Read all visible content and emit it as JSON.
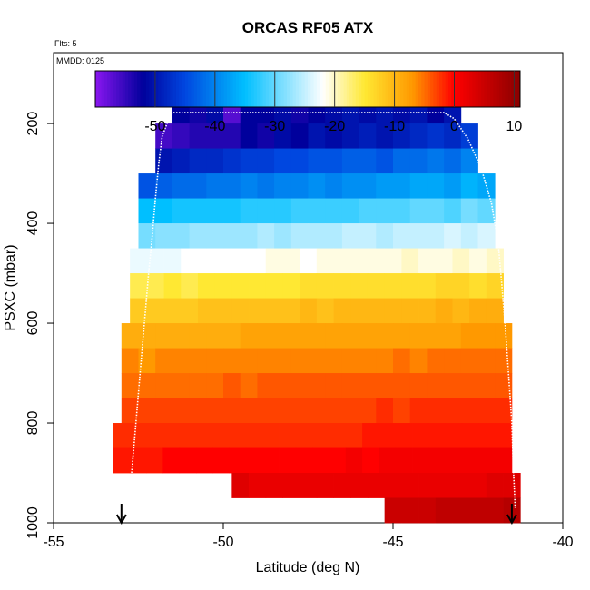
{
  "chart_data": {
    "type": "heatmap",
    "title": "ORCAS RF05 ATX",
    "subtitle_flts": "Flts: 5",
    "subtitle_mmdd": "MMDD: 0125",
    "xlabel": "Latitude (deg N)",
    "ylabel": "PSXC (mbar)",
    "xlim": [
      -55,
      -40
    ],
    "ylim": [
      1000,
      100
    ],
    "x_ticks": [
      -55,
      -50,
      -45,
      -40
    ],
    "y_ticks": [
      200,
      400,
      600,
      800,
      1000
    ],
    "colorbar": {
      "range": [
        -60,
        11
      ],
      "ticks": [
        -50,
        -40,
        -30,
        -20,
        -10,
        0,
        10
      ],
      "colors": [
        "#8a16f0",
        "#00009c",
        "#0047e0",
        "#00bfff",
        "#ffffff",
        "#ffe833",
        "#ff9900",
        "#ff0000",
        "#8a0000"
      ]
    },
    "bin_width_lat": 0.5,
    "bin_height_mbar": 50,
    "rows": [
      {
        "p": 175,
        "lat0": -51.5,
        "lat1": -43.0,
        "values": [
          -52,
          -53,
          -51,
          -57,
          -52,
          -52,
          -51,
          -53,
          -52,
          -51,
          -50,
          -51,
          -50,
          -51,
          -50,
          -52,
          -50
        ]
      },
      {
        "p": 225,
        "lat0": -52.0,
        "lat1": -42.5,
        "values": [
          -56,
          -55,
          -54,
          -54,
          -54,
          -52,
          -53,
          -51,
          -52,
          -50,
          -51,
          -50,
          -49,
          -50,
          -49,
          -48,
          -47,
          -48,
          -46
        ]
      },
      {
        "p": 275,
        "lat0": -52.0,
        "lat1": -42.5,
        "values": [
          -50,
          -49,
          -48,
          -48,
          -47,
          -46,
          -46,
          -45,
          -45,
          -44,
          -44,
          -43,
          -43,
          -44,
          -42,
          -42,
          -41,
          -42,
          -40
        ]
      },
      {
        "p": 325,
        "lat0": -52.5,
        "lat1": -42.0,
        "values": [
          -44,
          -43,
          -42,
          -42,
          -41,
          -41,
          -40,
          -41,
          -40,
          -40,
          -39,
          -40,
          -39,
          -39,
          -38,
          -38,
          -37,
          -37,
          -38,
          -36,
          -37
        ]
      },
      {
        "p": 375,
        "lat0": -52.5,
        "lat1": -42.0,
        "values": [
          -35,
          -35,
          -34,
          -34,
          -34,
          -34,
          -33,
          -33,
          -33,
          -32,
          -32,
          -32,
          -32,
          -31,
          -31,
          -31,
          -30,
          -30,
          -31,
          -29,
          -30
        ]
      },
      {
        "p": 425,
        "lat0": -52.5,
        "lat1": -42.0,
        "values": [
          -29,
          -28,
          -28,
          -27,
          -27,
          -27,
          -27,
          -26,
          -27,
          -26,
          -26,
          -26,
          -25,
          -25,
          -26,
          -25,
          -25,
          -25,
          -24,
          -25,
          -24
        ]
      },
      {
        "p": 475,
        "lat0": -52.75,
        "lat1": -41.75,
        "values": [
          -23,
          -23,
          -23,
          -22,
          -22,
          -22,
          -22,
          -22,
          -21,
          -21,
          -22,
          -21,
          -21,
          -21,
          -21,
          -21,
          -20,
          -21,
          -21,
          -20,
          -21,
          -20
        ]
      },
      {
        "p": 525,
        "lat0": -52.75,
        "lat1": -41.75,
        "values": [
          -16,
          -16,
          -15,
          -16,
          -15,
          -15,
          -15,
          -15,
          -15,
          -15,
          -14,
          -14,
          -14,
          -14,
          -14,
          -14,
          -14,
          -14,
          -13,
          -13,
          -14,
          -13
        ]
      },
      {
        "p": 575,
        "lat0": -52.75,
        "lat1": -41.75,
        "values": [
          -12,
          -12,
          -12,
          -12,
          -11,
          -11,
          -11,
          -11,
          -11,
          -11,
          -10,
          -11,
          -10,
          -10,
          -10,
          -10,
          -10,
          -10,
          -9,
          -10,
          -9,
          -9
        ]
      },
      {
        "p": 625,
        "lat0": -53.0,
        "lat1": -41.5,
        "values": [
          -9,
          -9,
          -9,
          -9,
          -9,
          -9,
          -9,
          -8,
          -8,
          -8,
          -8,
          -8,
          -8,
          -8,
          -8,
          -8,
          -8,
          -8,
          -8,
          -8,
          -7,
          -7,
          -7
        ]
      },
      {
        "p": 675,
        "lat0": -53.0,
        "lat1": -41.5,
        "values": [
          -6,
          -7,
          -6,
          -6,
          -6,
          -6,
          -6,
          -6,
          -6,
          -6,
          -6,
          -6,
          -6,
          -6,
          -6,
          -6,
          -5,
          -6,
          -5,
          -5,
          -5,
          -5,
          -5
        ]
      },
      {
        "p": 725,
        "lat0": -53.0,
        "lat1": -41.5,
        "values": [
          -5,
          -5,
          -5,
          -5,
          -5,
          -5,
          -4,
          -5,
          -4,
          -4,
          -4,
          -4,
          -4,
          -4,
          -4,
          -4,
          -4,
          -4,
          -4,
          -4,
          -4,
          -4,
          -4
        ]
      },
      {
        "p": 775,
        "lat0": -53.0,
        "lat1": -41.5,
        "values": [
          -3,
          -3,
          -3,
          -3,
          -3,
          -3,
          -3,
          -3,
          -3,
          -3,
          -3,
          -3,
          -3,
          -3,
          -3,
          -2,
          -3,
          -2,
          -2,
          -2,
          -2,
          -2,
          -2
        ]
      },
      {
        "p": 825,
        "lat0": -53.25,
        "lat1": -41.5,
        "values": [
          -2,
          -2,
          -2,
          -2,
          -2,
          -2,
          -2,
          -2,
          -2,
          -2,
          -2,
          -2,
          -2,
          -2,
          -2,
          -1,
          -1,
          -1,
          -1,
          -1,
          -1,
          -1,
          -1,
          -1
        ]
      },
      {
        "p": 875,
        "lat0": -53.25,
        "lat1": -41.5,
        "values": [
          -1,
          -1,
          -1,
          0,
          0,
          0,
          0,
          0,
          0,
          0,
          0,
          0,
          0,
          0,
          1,
          0,
          1,
          1,
          1,
          1,
          1,
          1,
          1,
          1
        ]
      },
      {
        "p": 925,
        "lat0": -49.75,
        "lat1": -41.25,
        "values": [
          3,
          2,
          2,
          2,
          2,
          2,
          2,
          2,
          2,
          2,
          2,
          2,
          2,
          2,
          2,
          3,
          3
        ]
      },
      {
        "p": 975,
        "lat0": -45.25,
        "lat1": -41.25,
        "values": [
          5,
          5,
          5,
          6,
          6,
          6,
          6,
          7
        ]
      }
    ],
    "flight_track": [
      [
        -52.8,
        965
      ],
      [
        -52.7,
        900
      ],
      [
        -52.6,
        820
      ],
      [
        -52.5,
        740
      ],
      [
        -52.4,
        660
      ],
      [
        -52.3,
        580
      ],
      [
        -52.2,
        500
      ],
      [
        -52.1,
        430
      ],
      [
        -52.0,
        350
      ],
      [
        -51.9,
        280
      ],
      [
        -51.8,
        225
      ],
      [
        -51.6,
        190
      ],
      [
        -51.5,
        178
      ],
      [
        -50.0,
        178
      ],
      [
        -48.0,
        178
      ],
      [
        -45.0,
        178
      ],
      [
        -43.5,
        178
      ],
      [
        -43.2,
        190
      ],
      [
        -42.8,
        230
      ],
      [
        -42.4,
        290
      ],
      [
        -42.1,
        360
      ],
      [
        -41.9,
        440
      ],
      [
        -41.8,
        520
      ],
      [
        -41.7,
        600
      ],
      [
        -41.6,
        700
      ],
      [
        -41.5,
        800
      ],
      [
        -41.45,
        900
      ],
      [
        -41.4,
        970
      ]
    ],
    "arrows_lat": [
      -53.0,
      -41.5
    ]
  }
}
